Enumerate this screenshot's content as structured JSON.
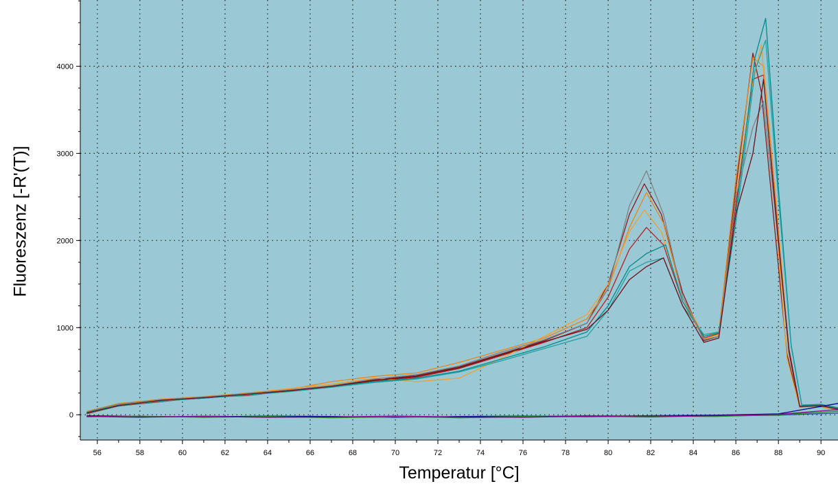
{
  "chart_data": {
    "type": "line",
    "title": "",
    "xlabel": "Temperatur [°C]",
    "ylabel": "Fluoreszenz [-R'(T)]",
    "xlim": [
      55.2,
      90.8
    ],
    "ylim": [
      -290,
      4760
    ],
    "xticks": [
      "56",
      "58",
      "60",
      "62",
      "64",
      "66",
      "68",
      "70",
      "72",
      "74",
      "76",
      "78",
      "80",
      "82",
      "84",
      "86",
      "88",
      "90"
    ],
    "yticks": [
      "0",
      "1000",
      "2000",
      "3000",
      "4000"
    ],
    "grid": true,
    "plot_background": "#9bc8d5",
    "series": [
      {
        "color": "#8b1a1a",
        "x": [
          55.5,
          57,
          59,
          61,
          63,
          65,
          67,
          69,
          71,
          73,
          75,
          77,
          79,
          80,
          81,
          81.7,
          82.5,
          83.5,
          84.5,
          85.2,
          86,
          86.8,
          87.2,
          87.8,
          88.4,
          89,
          90,
          90.8
        ],
        "values": [
          20,
          110,
          160,
          190,
          230,
          280,
          330,
          400,
          450,
          550,
          700,
          850,
          1050,
          1500,
          2300,
          2650,
          2300,
          1400,
          850,
          900,
          2600,
          4150,
          3700,
          2200,
          700,
          90,
          100,
          60
        ]
      },
      {
        "color": "#b22222",
        "x": [
          55.5,
          57,
          59,
          61,
          63,
          65,
          67,
          69,
          71,
          73,
          75,
          77,
          79,
          80,
          81,
          81.8,
          82.6,
          83.5,
          84.5,
          85.2,
          86,
          86.8,
          87.3,
          87.9,
          88.5,
          89,
          90,
          90.8
        ],
        "values": [
          10,
          100,
          150,
          200,
          220,
          270,
          320,
          390,
          430,
          530,
          680,
          830,
          1000,
          1350,
          1900,
          2150,
          1950,
          1300,
          880,
          930,
          2400,
          3850,
          3900,
          2300,
          750,
          100,
          110,
          70
        ]
      },
      {
        "color": "#e8861a",
        "x": [
          55.5,
          57,
          59,
          61,
          63,
          65,
          67,
          69,
          71,
          73,
          75,
          77,
          79,
          80,
          81,
          81.8,
          82.6,
          83.5,
          84.5,
          85.2,
          86,
          86.8,
          87.3,
          87.9,
          88.5,
          89,
          90,
          90.8
        ],
        "values": [
          30,
          120,
          170,
          200,
          240,
          290,
          380,
          440,
          480,
          600,
          740,
          880,
          1100,
          1450,
          2150,
          2550,
          2200,
          1350,
          900,
          950,
          2700,
          4100,
          4000,
          2400,
          700,
          90,
          90,
          50
        ]
      },
      {
        "color": "#f0a030",
        "x": [
          55.5,
          57,
          59,
          61,
          63,
          65,
          67,
          69,
          71,
          73,
          75,
          77,
          79,
          80,
          81,
          81.7,
          82.5,
          83.5,
          84.5,
          85.2,
          86,
          86.7,
          87.2,
          87.8,
          88.4,
          89,
          90,
          90.8
        ],
        "values": [
          40,
          130,
          180,
          210,
          250,
          300,
          350,
          420,
          380,
          420,
          650,
          900,
          1150,
          1500,
          2100,
          2350,
          2100,
          1300,
          870,
          920,
          2500,
          3700,
          4250,
          2500,
          650,
          80,
          100,
          60
        ]
      },
      {
        "color": "#008b8b",
        "x": [
          55.5,
          57,
          59,
          61,
          63,
          65,
          67,
          69,
          71,
          73,
          75,
          77,
          79,
          80,
          81,
          81.8,
          82.7,
          83.5,
          84.5,
          85.2,
          86,
          86.9,
          87.4,
          88,
          88.6,
          89.1,
          90,
          90.8
        ],
        "values": [
          25,
          110,
          160,
          200,
          230,
          270,
          320,
          380,
          420,
          500,
          640,
          780,
          950,
          1250,
          1700,
          1850,
          1950,
          1300,
          900,
          940,
          2300,
          4100,
          4550,
          2600,
          800,
          110,
          120,
          80
        ]
      },
      {
        "color": "#20a0a0",
        "x": [
          55.5,
          57,
          59,
          61,
          63,
          65,
          67,
          69,
          71,
          73,
          75,
          77,
          79,
          80,
          81,
          81.8,
          82.6,
          83.5,
          84.5,
          85.2,
          86,
          86.9,
          87.4,
          88,
          88.6,
          89.1,
          90,
          90.8
        ],
        "values": [
          15,
          100,
          155,
          190,
          225,
          265,
          315,
          370,
          410,
          490,
          620,
          760,
          900,
          1200,
          1650,
          1750,
          1800,
          1250,
          920,
          950,
          2200,
          3950,
          4300,
          2500,
          780,
          100,
          110,
          70
        ]
      },
      {
        "color": "#808080",
        "x": [
          55.5,
          57,
          59,
          61,
          63,
          65,
          67,
          69,
          71,
          73,
          75,
          77,
          79,
          80,
          81,
          81.8,
          82.6,
          83.5,
          84.5,
          85.2,
          86,
          86.8,
          87.3,
          87.9,
          88.5,
          89,
          90,
          90.8
        ],
        "values": [
          35,
          125,
          175,
          205,
          245,
          285,
          335,
          410,
          460,
          560,
          720,
          860,
          1050,
          1450,
          2400,
          2800,
          2300,
          1350,
          860,
          900,
          2500,
          3300,
          3600,
          2200,
          700,
          90,
          100,
          60
        ]
      },
      {
        "color": "#6b0f1a",
        "x": [
          55.5,
          57,
          59,
          61,
          63,
          65,
          67,
          69,
          71,
          73,
          75,
          77,
          79,
          80,
          81,
          81.8,
          82.6,
          83.5,
          84.5,
          85.2,
          86,
          86.8,
          87.3,
          87.9,
          88.5,
          89,
          90,
          90.8
        ],
        "values": [
          20,
          105,
          165,
          195,
          235,
          275,
          325,
          395,
          440,
          540,
          690,
          840,
          980,
          1200,
          1550,
          1700,
          1800,
          1250,
          830,
          880,
          2300,
          3000,
          3850,
          2250,
          720,
          95,
          105,
          65
        ]
      },
      {
        "color": "#2f4f8f",
        "x": [
          55.5,
          58,
          61,
          64,
          67,
          70,
          73,
          76,
          79,
          82,
          85,
          88,
          90.8
        ],
        "values": [
          -20,
          -30,
          -15,
          -25,
          -30,
          -20,
          -35,
          -25,
          -10,
          -20,
          -15,
          -5,
          20
        ]
      },
      {
        "color": "#00008b",
        "x": [
          55.5,
          58,
          61,
          64,
          67,
          70,
          73,
          76,
          79,
          82,
          85,
          88,
          90.8
        ],
        "values": [
          -10,
          -20,
          -25,
          -15,
          -20,
          -30,
          -20,
          -15,
          -20,
          -10,
          -5,
          10,
          130
        ]
      },
      {
        "color": "#228b22",
        "x": [
          55.5,
          58,
          61,
          64,
          67,
          70,
          73,
          76,
          79,
          82,
          85,
          88,
          90.8
        ],
        "values": [
          -25,
          -15,
          -30,
          -20,
          -35,
          -25,
          -30,
          -20,
          -25,
          -15,
          -20,
          0,
          40
        ]
      },
      {
        "color": "#8b008b",
        "x": [
          55.5,
          58,
          61,
          64,
          67,
          70,
          73,
          76,
          79,
          82,
          85,
          88,
          90.8
        ],
        "values": [
          -15,
          -25,
          -20,
          -30,
          -25,
          -15,
          -25,
          -30,
          -15,
          -25,
          -10,
          5,
          60
        ]
      }
    ]
  }
}
